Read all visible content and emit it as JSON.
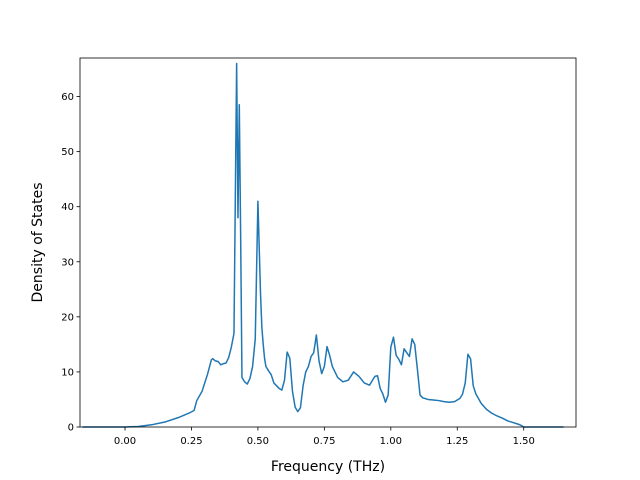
{
  "chart_data": {
    "type": "line",
    "title": "",
    "xlabel": "Frequency (THz)",
    "ylabel": "Density of States",
    "xlim": [
      -0.1693,
      1.6967
    ],
    "ylim": [
      0,
      67
    ],
    "x_ticks": [
      0.0,
      0.25,
      0.5,
      0.75,
      1.0,
      1.25,
      1.5
    ],
    "x_tick_labels": [
      "0.00",
      "0.25",
      "0.50",
      "0.75",
      "1.00",
      "1.25",
      "1.50"
    ],
    "y_ticks": [
      0,
      10,
      20,
      30,
      40,
      50,
      60
    ],
    "y_tick_labels": [
      "0",
      "10",
      "20",
      "30",
      "40",
      "50",
      "60"
    ],
    "grid": false,
    "color": "#1f77b4",
    "series": [
      {
        "x": [
          -0.16,
          0.0,
          0.05,
          0.1,
          0.15,
          0.2,
          0.24,
          0.26,
          0.27,
          0.29,
          0.31,
          0.325,
          0.33,
          0.335,
          0.34,
          0.35,
          0.36,
          0.37,
          0.38,
          0.39,
          0.4,
          0.41,
          0.42,
          0.425,
          0.43,
          0.435,
          0.44,
          0.45,
          0.46,
          0.47,
          0.48,
          0.49,
          0.5,
          0.51,
          0.515,
          0.52,
          0.525,
          0.53,
          0.54,
          0.55,
          0.56,
          0.57,
          0.58,
          0.59,
          0.6,
          0.61,
          0.62,
          0.63,
          0.64,
          0.65,
          0.66,
          0.67,
          0.68,
          0.69,
          0.7,
          0.71,
          0.72,
          0.73,
          0.74,
          0.75,
          0.76,
          0.77,
          0.78,
          0.79,
          0.8,
          0.82,
          0.84,
          0.86,
          0.88,
          0.9,
          0.92,
          0.94,
          0.95,
          0.96,
          0.97,
          0.98,
          0.99,
          1.0,
          1.01,
          1.02,
          1.03,
          1.04,
          1.05,
          1.06,
          1.07,
          1.08,
          1.09,
          1.1,
          1.11,
          1.12,
          1.14,
          1.16,
          1.18,
          1.2,
          1.22,
          1.24,
          1.26,
          1.27,
          1.28,
          1.29,
          1.3,
          1.31,
          1.32,
          1.34,
          1.36,
          1.38,
          1.4,
          1.42,
          1.44,
          1.46,
          1.48,
          1.49,
          1.5,
          1.55,
          1.65
        ],
        "y": [
          0.0,
          0.0,
          0.1,
          0.4,
          0.9,
          1.7,
          2.5,
          3.0,
          4.8,
          6.5,
          9.5,
          12.2,
          12.4,
          12.2,
          12.0,
          11.9,
          11.3,
          11.5,
          11.6,
          12.6,
          14.5,
          17.0,
          66.0,
          38.0,
          58.5,
          35.0,
          9.0,
          8.2,
          7.8,
          8.8,
          11.0,
          16.0,
          41.0,
          24.0,
          18.0,
          15.0,
          12.5,
          11.0,
          10.2,
          9.5,
          8.0,
          7.5,
          7.0,
          6.7,
          8.5,
          13.6,
          12.5,
          6.5,
          3.6,
          2.8,
          3.5,
          7.5,
          10.0,
          11.0,
          12.8,
          13.5,
          16.7,
          12.0,
          9.7,
          11.0,
          14.6,
          13.0,
          11.0,
          10.0,
          9.0,
          8.2,
          8.5,
          10.0,
          9.2,
          8.0,
          7.6,
          9.2,
          9.3,
          7.0,
          6.0,
          4.5,
          5.8,
          14.5,
          16.3,
          13.0,
          12.3,
          11.3,
          14.2,
          13.5,
          12.8,
          16.0,
          15.0,
          10.5,
          5.8,
          5.3,
          5.0,
          4.9,
          4.8,
          4.6,
          4.5,
          4.6,
          5.2,
          6.0,
          8.0,
          13.2,
          12.4,
          7.5,
          6.0,
          4.3,
          3.2,
          2.5,
          2.0,
          1.6,
          1.1,
          0.8,
          0.5,
          0.3,
          0.0,
          0.0,
          0.0
        ]
      }
    ]
  }
}
